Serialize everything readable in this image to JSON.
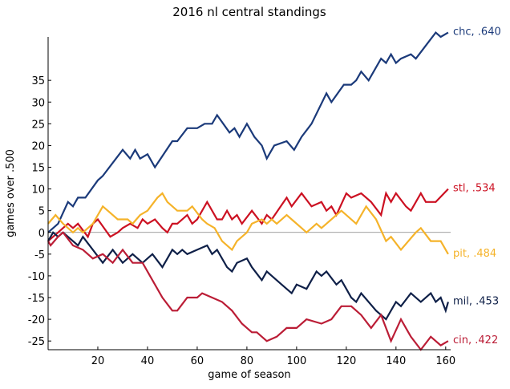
{
  "chart_data": {
    "type": "line",
    "title": "2016 nl central standings",
    "xlabel": "game of season",
    "ylabel": "games over .500",
    "xlim": [
      0,
      162
    ],
    "ylim": [
      -27,
      45
    ],
    "xticks": [
      20,
      40,
      60,
      80,
      100,
      120,
      140,
      160
    ],
    "yticks": [
      -25,
      -20,
      -15,
      -10,
      -5,
      0,
      5,
      10,
      15,
      20,
      25,
      30,
      35
    ],
    "zero_line": true,
    "grid": false,
    "series": [
      {
        "name": "chc",
        "label": "chc, .640",
        "color": "#1b3a7a",
        "points": [
          [
            0,
            0
          ],
          [
            4,
            2
          ],
          [
            8,
            7
          ],
          [
            10,
            6
          ],
          [
            12,
            8
          ],
          [
            15,
            8
          ],
          [
            20,
            12
          ],
          [
            22,
            13
          ],
          [
            30,
            19
          ],
          [
            33,
            17
          ],
          [
            35,
            19
          ],
          [
            37,
            17
          ],
          [
            40,
            18
          ],
          [
            43,
            15
          ],
          [
            50,
            21
          ],
          [
            52,
            21
          ],
          [
            56,
            24
          ],
          [
            60,
            24
          ],
          [
            63,
            25
          ],
          [
            66,
            25
          ],
          [
            68,
            27
          ],
          [
            73,
            23
          ],
          [
            75,
            24
          ],
          [
            77,
            22
          ],
          [
            80,
            25
          ],
          [
            83,
            22
          ],
          [
            86,
            20
          ],
          [
            88,
            17
          ],
          [
            91,
            20
          ],
          [
            96,
            21
          ],
          [
            99,
            19
          ],
          [
            102,
            22
          ],
          [
            106,
            25
          ],
          [
            112,
            32
          ],
          [
            114,
            30
          ],
          [
            119,
            34
          ],
          [
            122,
            34
          ],
          [
            124,
            35
          ],
          [
            126,
            37
          ],
          [
            129,
            35
          ],
          [
            134,
            40
          ],
          [
            136,
            39
          ],
          [
            138,
            41
          ],
          [
            140,
            39
          ],
          [
            142,
            40
          ],
          [
            146,
            41
          ],
          [
            148,
            40
          ],
          [
            152,
            43
          ],
          [
            156,
            46
          ],
          [
            158,
            45
          ],
          [
            161,
            46
          ]
        ]
      },
      {
        "name": "stl",
        "label": "stl, .534",
        "color": "#cc1122",
        "points": [
          [
            0,
            -2
          ],
          [
            4,
            0
          ],
          [
            6,
            1
          ],
          [
            8,
            2
          ],
          [
            10,
            1
          ],
          [
            12,
            2
          ],
          [
            16,
            -1
          ],
          [
            18,
            2
          ],
          [
            20,
            3
          ],
          [
            25,
            -1
          ],
          [
            28,
            0
          ],
          [
            30,
            1
          ],
          [
            33,
            2
          ],
          [
            36,
            1
          ],
          [
            38,
            3
          ],
          [
            40,
            2
          ],
          [
            43,
            3
          ],
          [
            46,
            1
          ],
          [
            48,
            0
          ],
          [
            50,
            2
          ],
          [
            52,
            2
          ],
          [
            56,
            4
          ],
          [
            58,
            2
          ],
          [
            60,
            3
          ],
          [
            64,
            7
          ],
          [
            68,
            3
          ],
          [
            70,
            3
          ],
          [
            72,
            5
          ],
          [
            74,
            3
          ],
          [
            76,
            4
          ],
          [
            78,
            2
          ],
          [
            82,
            5
          ],
          [
            86,
            2
          ],
          [
            88,
            4
          ],
          [
            90,
            3
          ],
          [
            96,
            8
          ],
          [
            98,
            6
          ],
          [
            102,
            9
          ],
          [
            106,
            6
          ],
          [
            110,
            7
          ],
          [
            112,
            5
          ],
          [
            114,
            6
          ],
          [
            116,
            4
          ],
          [
            120,
            9
          ],
          [
            122,
            8
          ],
          [
            126,
            9
          ],
          [
            130,
            7
          ],
          [
            134,
            4
          ],
          [
            136,
            9
          ],
          [
            138,
            7
          ],
          [
            140,
            9
          ],
          [
            144,
            6
          ],
          [
            146,
            5
          ],
          [
            150,
            9
          ],
          [
            152,
            7
          ],
          [
            156,
            7
          ],
          [
            161,
            10
          ]
        ]
      },
      {
        "name": "pit",
        "label": "pit, .484",
        "color": "#f5b32a",
        "points": [
          [
            0,
            2
          ],
          [
            3,
            4
          ],
          [
            6,
            2
          ],
          [
            10,
            0
          ],
          [
            12,
            1
          ],
          [
            14,
            0
          ],
          [
            18,
            2
          ],
          [
            22,
            6
          ],
          [
            24,
            5
          ],
          [
            28,
            3
          ],
          [
            32,
            3
          ],
          [
            34,
            2
          ],
          [
            37,
            4
          ],
          [
            40,
            5
          ],
          [
            44,
            8
          ],
          [
            46,
            9
          ],
          [
            48,
            7
          ],
          [
            52,
            5
          ],
          [
            56,
            5
          ],
          [
            58,
            6
          ],
          [
            62,
            3
          ],
          [
            64,
            2
          ],
          [
            67,
            1
          ],
          [
            70,
            -2
          ],
          [
            74,
            -4
          ],
          [
            76,
            -2
          ],
          [
            80,
            0
          ],
          [
            82,
            2
          ],
          [
            86,
            3
          ],
          [
            88,
            2
          ],
          [
            90,
            3
          ],
          [
            92,
            2
          ],
          [
            96,
            4
          ],
          [
            98,
            3
          ],
          [
            102,
            1
          ],
          [
            104,
            0
          ],
          [
            108,
            2
          ],
          [
            110,
            1
          ],
          [
            112,
            2
          ],
          [
            116,
            4
          ],
          [
            118,
            5
          ],
          [
            124,
            2
          ],
          [
            128,
            6
          ],
          [
            132,
            3
          ],
          [
            136,
            -2
          ],
          [
            138,
            -1
          ],
          [
            142,
            -4
          ],
          [
            148,
            0
          ],
          [
            150,
            1
          ],
          [
            154,
            -2
          ],
          [
            158,
            -2
          ],
          [
            161,
            -5
          ]
        ]
      },
      {
        "name": "mil",
        "label": "mil, .453",
        "color": "#0f2048",
        "points": [
          [
            0,
            -2
          ],
          [
            2,
            0
          ],
          [
            4,
            -1
          ],
          [
            6,
            0
          ],
          [
            8,
            -1
          ],
          [
            12,
            -3
          ],
          [
            14,
            -1
          ],
          [
            18,
            -4
          ],
          [
            22,
            -7
          ],
          [
            26,
            -4
          ],
          [
            30,
            -7
          ],
          [
            34,
            -5
          ],
          [
            38,
            -7
          ],
          [
            42,
            -5
          ],
          [
            46,
            -8
          ],
          [
            48,
            -6
          ],
          [
            50,
            -4
          ],
          [
            52,
            -5
          ],
          [
            54,
            -4
          ],
          [
            56,
            -5
          ],
          [
            60,
            -4
          ],
          [
            64,
            -3
          ],
          [
            66,
            -5
          ],
          [
            68,
            -4
          ],
          [
            72,
            -8
          ],
          [
            74,
            -9
          ],
          [
            76,
            -7
          ],
          [
            80,
            -6
          ],
          [
            82,
            -8
          ],
          [
            86,
            -11
          ],
          [
            88,
            -9
          ],
          [
            90,
            -10
          ],
          [
            94,
            -12
          ],
          [
            98,
            -14
          ],
          [
            100,
            -12
          ],
          [
            104,
            -13
          ],
          [
            108,
            -9
          ],
          [
            110,
            -10
          ],
          [
            112,
            -9
          ],
          [
            116,
            -12
          ],
          [
            118,
            -11
          ],
          [
            120,
            -13
          ],
          [
            122,
            -15
          ],
          [
            124,
            -16
          ],
          [
            126,
            -14
          ],
          [
            132,
            -18
          ],
          [
            136,
            -20
          ],
          [
            140,
            -16
          ],
          [
            142,
            -17
          ],
          [
            146,
            -14
          ],
          [
            150,
            -16
          ],
          [
            154,
            -14
          ],
          [
            156,
            -16
          ],
          [
            158,
            -15
          ],
          [
            160,
            -18
          ],
          [
            161,
            -16
          ]
        ]
      },
      {
        "name": "cin",
        "label": "cin, .422",
        "color": "#bb1d36",
        "points": [
          [
            0,
            -2
          ],
          [
            1,
            -3
          ],
          [
            4,
            -1
          ],
          [
            6,
            0
          ],
          [
            10,
            -3
          ],
          [
            14,
            -4
          ],
          [
            18,
            -6
          ],
          [
            22,
            -5
          ],
          [
            26,
            -7
          ],
          [
            30,
            -4
          ],
          [
            34,
            -7
          ],
          [
            38,
            -7
          ],
          [
            42,
            -11
          ],
          [
            46,
            -15
          ],
          [
            50,
            -18
          ],
          [
            52,
            -18
          ],
          [
            56,
            -15
          ],
          [
            60,
            -15
          ],
          [
            62,
            -14
          ],
          [
            66,
            -15
          ],
          [
            70,
            -16
          ],
          [
            74,
            -18
          ],
          [
            78,
            -21
          ],
          [
            82,
            -23
          ],
          [
            84,
            -23
          ],
          [
            86,
            -24
          ],
          [
            88,
            -25
          ],
          [
            92,
            -24
          ],
          [
            96,
            -22
          ],
          [
            100,
            -22
          ],
          [
            104,
            -20
          ],
          [
            110,
            -21
          ],
          [
            114,
            -20
          ],
          [
            118,
            -17
          ],
          [
            122,
            -17
          ],
          [
            126,
            -19
          ],
          [
            130,
            -22
          ],
          [
            134,
            -19
          ],
          [
            138,
            -25
          ],
          [
            142,
            -20
          ],
          [
            146,
            -24
          ],
          [
            150,
            -27
          ],
          [
            154,
            -24
          ],
          [
            158,
            -26
          ],
          [
            161,
            -25
          ]
        ]
      }
    ]
  }
}
